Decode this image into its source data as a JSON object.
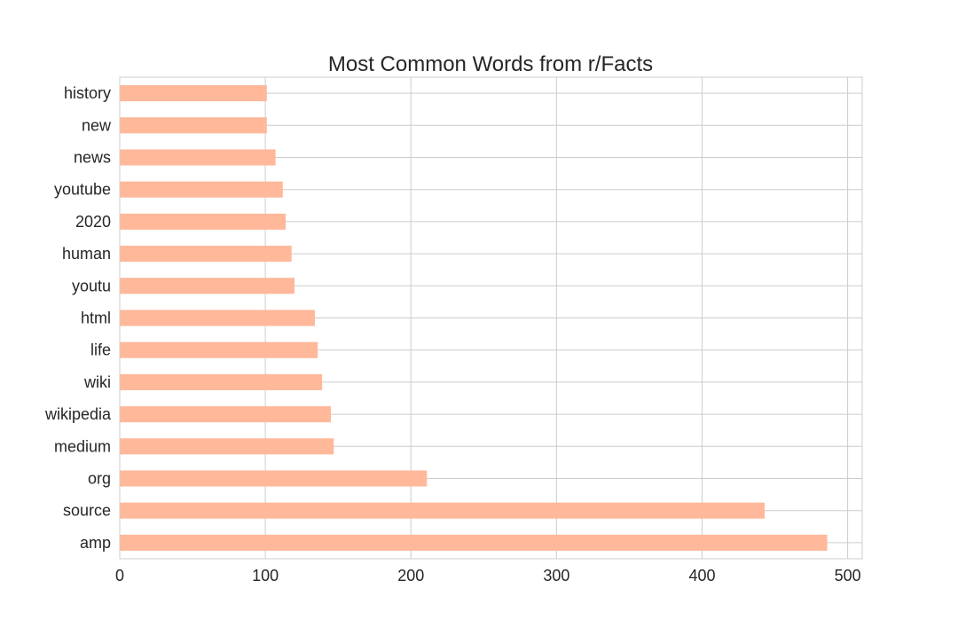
{
  "chart_data": {
    "type": "bar",
    "orientation": "horizontal",
    "title": "Most Common Words from r/Facts",
    "xlabel": "",
    "ylabel": "",
    "xlim": [
      0,
      510
    ],
    "x_ticks": [
      0,
      100,
      200,
      300,
      400,
      500
    ],
    "grid": true,
    "bar_color": "#ffb89a",
    "categories": [
      "history",
      "new",
      "news",
      "youtube",
      "2020",
      "human",
      "youtu",
      "html",
      "life",
      "wiki",
      "wikipedia",
      "medium",
      "org",
      "source",
      "amp"
    ],
    "values": [
      101,
      101,
      107,
      112,
      114,
      118,
      120,
      134,
      136,
      139,
      145,
      147,
      211,
      443,
      486
    ]
  }
}
